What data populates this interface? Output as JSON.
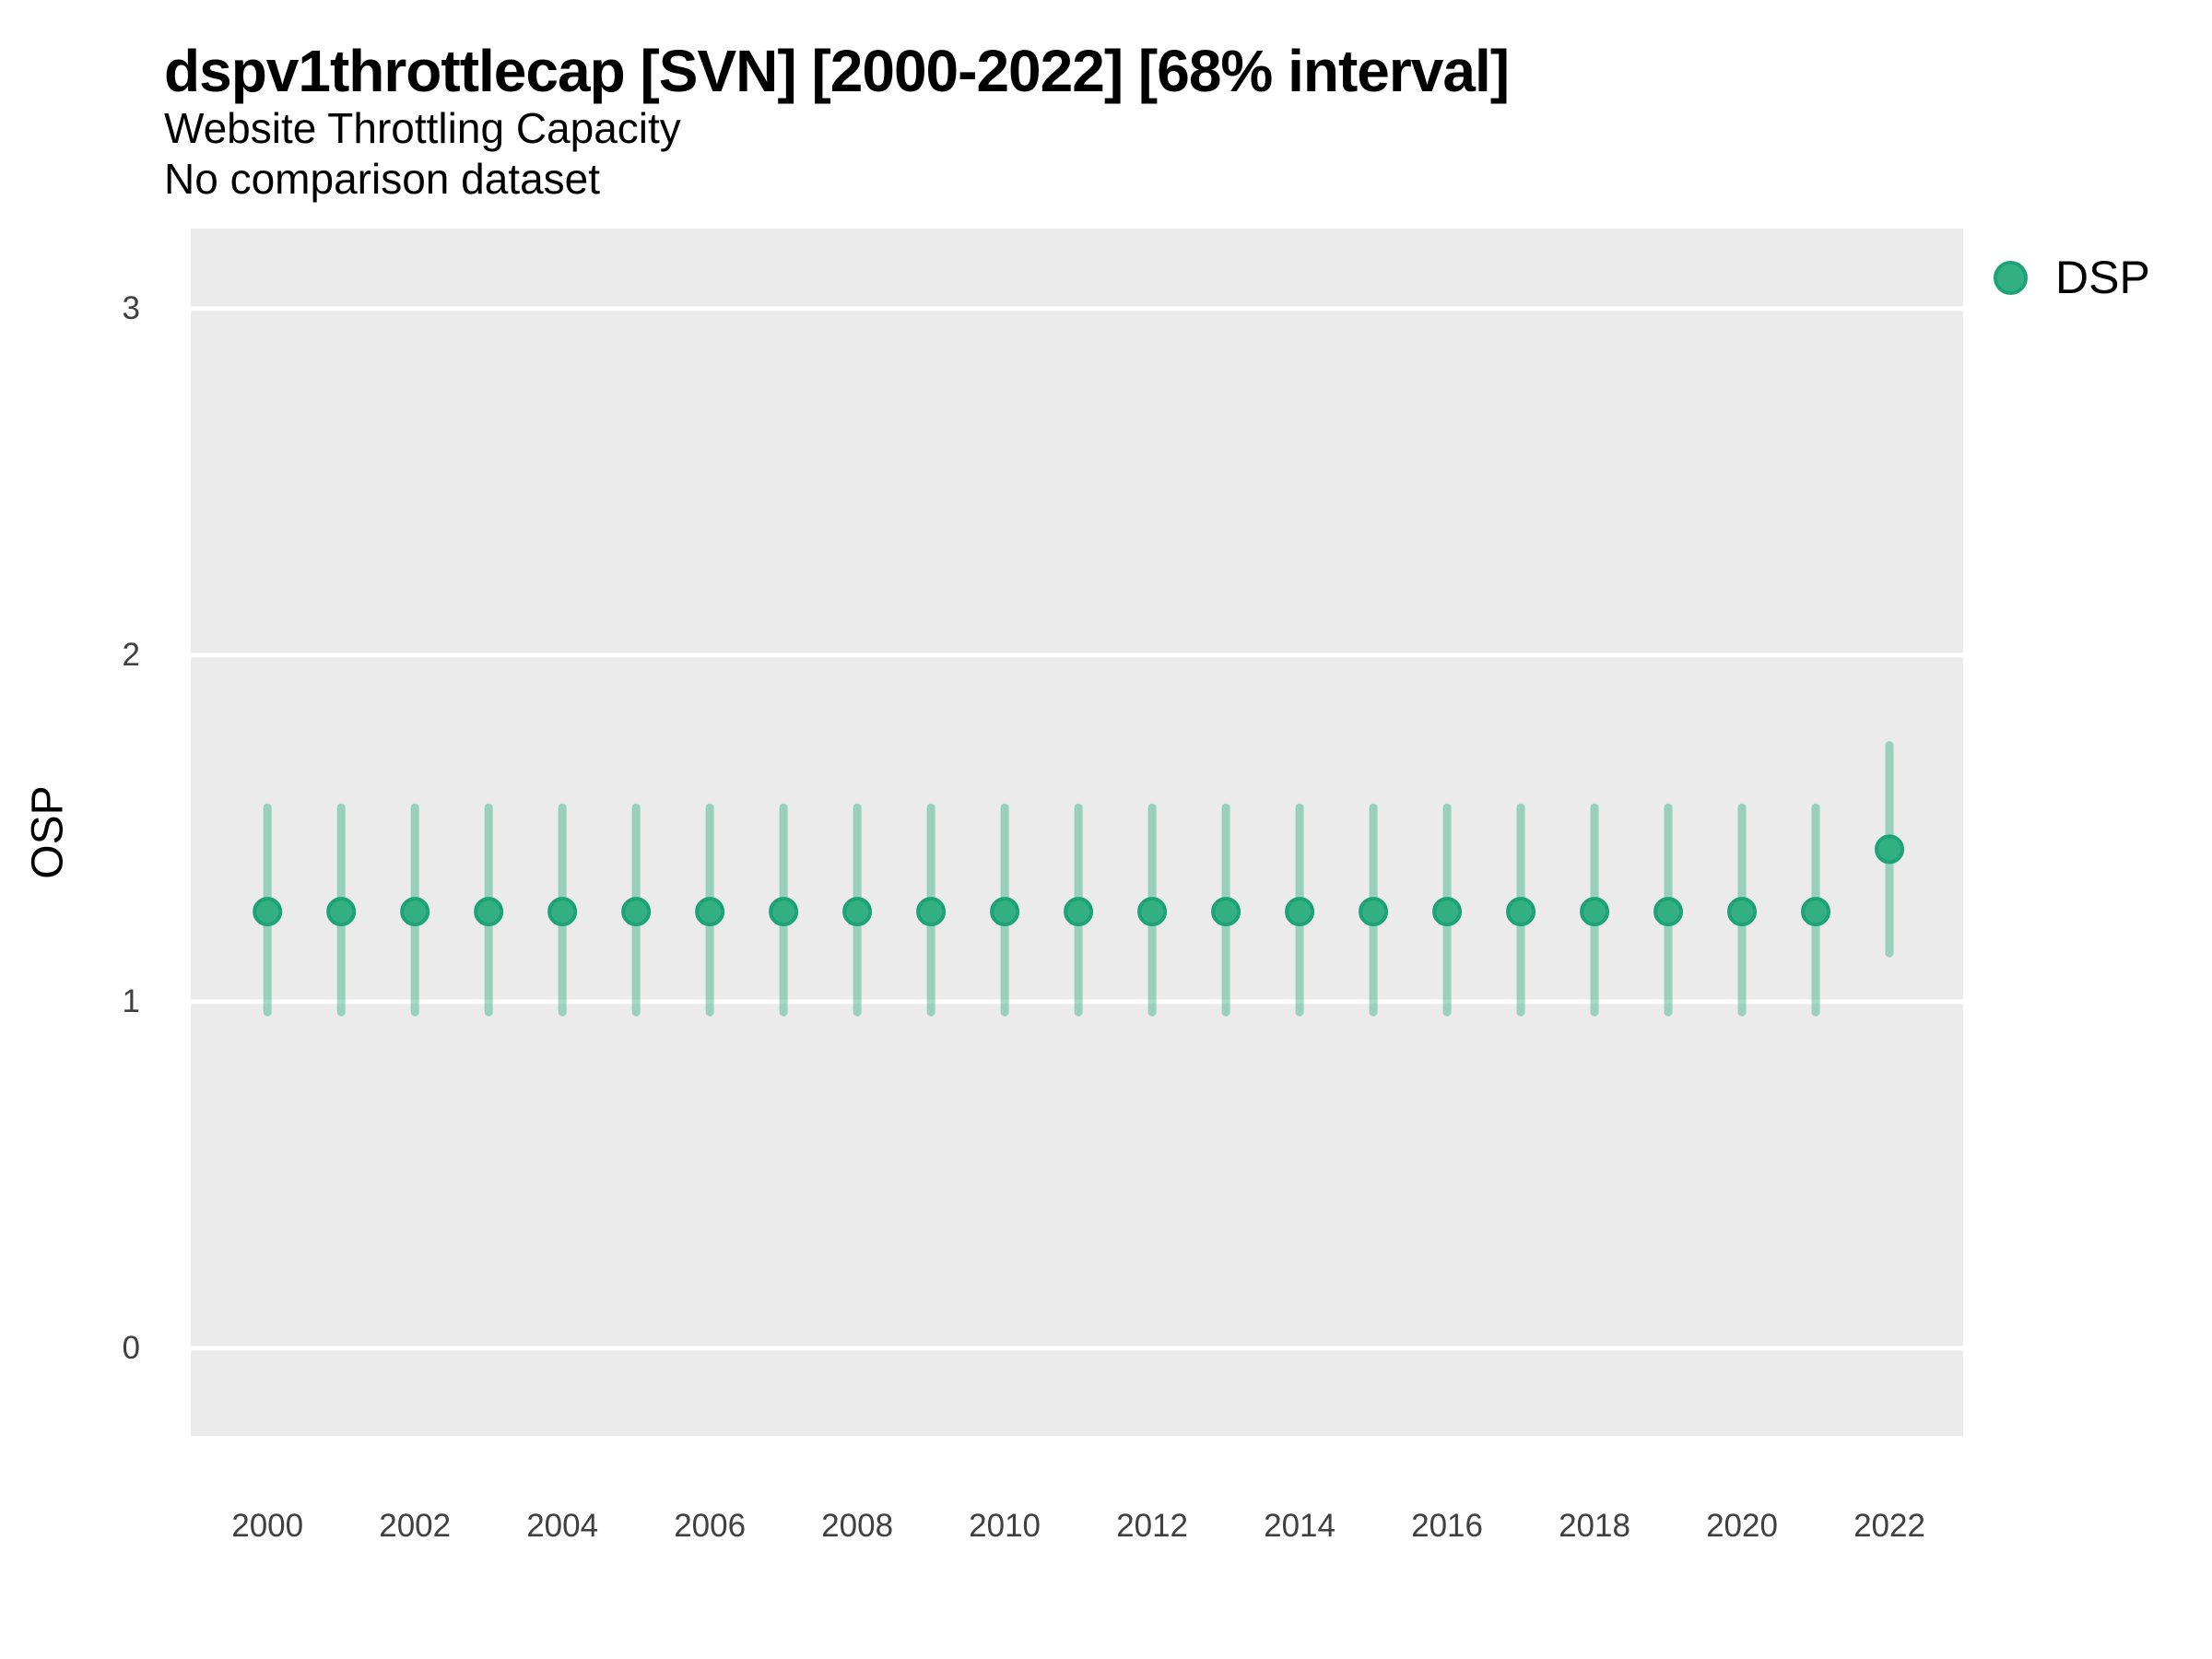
{
  "header": {
    "title": "dspv1throttlecap [SVN] [2000-2022] [68% interval]",
    "subtitle": "Website Throttling Capacity",
    "subtitle2": "No comparison dataset"
  },
  "legend": {
    "items": [
      {
        "label": "DSP",
        "fill": "#33b083",
        "border": "#1ca377"
      }
    ]
  },
  "colors": {
    "panel_background": "#EBEBEB",
    "gridline": "#FFFFFF",
    "point_fill": "#33b083",
    "point_border": "#1ca377",
    "interval_bar": "rgba(51,176,131,0.45)",
    "tick_text": "#404040",
    "text": "#000000"
  },
  "chart_data": {
    "type": "scatter",
    "subtype": "pointrange-interval",
    "title": "dspv1throttlecap [SVN] [2000-2022] [68% interval]",
    "subtitle": "Website Throttling Capacity",
    "annotation": "No comparison dataset",
    "xlabel": "",
    "ylabel": "OSP",
    "xlim": [
      1998.96,
      2023.0
    ],
    "ylim": [
      -0.253,
      3.231
    ],
    "yticks": [
      0,
      1,
      2,
      3
    ],
    "xticks": [
      2000,
      2002,
      2004,
      2006,
      2008,
      2010,
      2012,
      2014,
      2016,
      2018,
      2020,
      2022
    ],
    "grid": "major-horizontal-only",
    "legend_position": "right",
    "series": [
      {
        "name": "DSP",
        "x": [
          2000,
          2001,
          2002,
          2003,
          2004,
          2005,
          2006,
          2007,
          2008,
          2009,
          2010,
          2011,
          2012,
          2013,
          2014,
          2015,
          2016,
          2017,
          2018,
          2019,
          2020,
          2021,
          2022
        ],
        "y": [
          1.26,
          1.26,
          1.26,
          1.26,
          1.26,
          1.26,
          1.26,
          1.26,
          1.26,
          1.26,
          1.26,
          1.26,
          1.26,
          1.26,
          1.26,
          1.26,
          1.26,
          1.26,
          1.26,
          1.26,
          1.26,
          1.26,
          1.44
        ],
        "y_low": [
          0.97,
          0.97,
          0.97,
          0.97,
          0.97,
          0.97,
          0.97,
          0.97,
          0.97,
          0.97,
          0.97,
          0.97,
          0.97,
          0.97,
          0.97,
          0.97,
          0.97,
          0.97,
          0.97,
          0.97,
          0.97,
          0.97,
          1.14
        ],
        "y_high": [
          1.56,
          1.56,
          1.56,
          1.56,
          1.56,
          1.56,
          1.56,
          1.56,
          1.56,
          1.56,
          1.56,
          1.56,
          1.56,
          1.56,
          1.56,
          1.56,
          1.56,
          1.56,
          1.56,
          1.56,
          1.56,
          1.56,
          1.74
        ]
      }
    ]
  }
}
